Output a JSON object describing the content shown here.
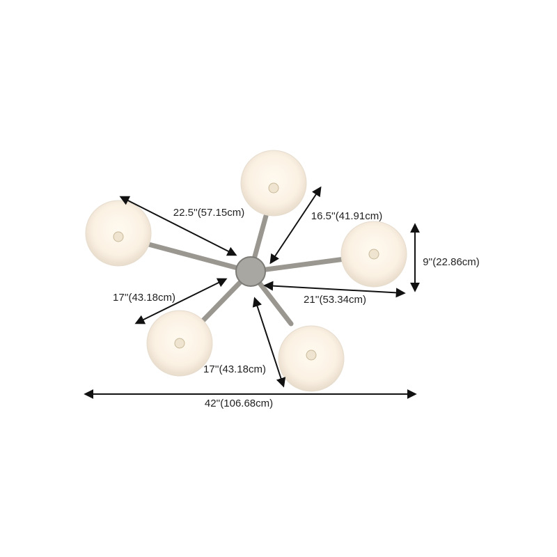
{
  "dimensions": [
    {
      "label": "22.5''(57.15cm)"
    },
    {
      "label": "16.5''(41.91cm)"
    },
    {
      "label": "9''(22.86cm)"
    },
    {
      "label": "17''(43.18cm)"
    },
    {
      "label": "21''(53.34cm)"
    },
    {
      "label": "17''(43.18cm)"
    },
    {
      "label": "42''(106.68cm)"
    }
  ]
}
